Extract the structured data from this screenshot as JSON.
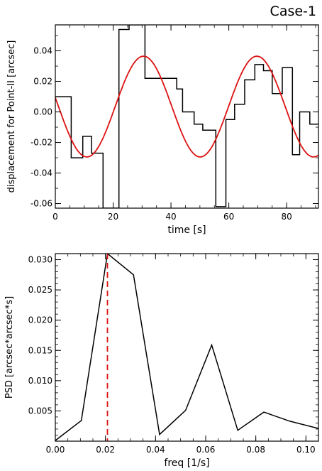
{
  "title": "Case-1",
  "colors": {
    "data": "#000000",
    "fit": "#dd1111",
    "marker": "#dd1111"
  },
  "chart_data": [
    {
      "type": "line",
      "subtype": "step-with-sine-fit",
      "xlabel": "time [s]",
      "ylabel": "displacement for Point-II [arcsec]",
      "xlim": [
        0,
        91
      ],
      "ylim": [
        -0.063,
        0.057
      ],
      "xticks": [
        0,
        20,
        40,
        60,
        80
      ],
      "yticks": [
        -0.06,
        -0.04,
        -0.02,
        0.0,
        0.02,
        0.04
      ],
      "ytick_labels": [
        "-0.06",
        "-0.04",
        "-0.02",
        "0.00",
        "0.02",
        "0.04"
      ],
      "series": [
        {
          "style": "step",
          "x": [
            0,
            2,
            5.5,
            9.5,
            12.5,
            16.5,
            20.5,
            22,
            25.5,
            30,
            31,
            37.5,
            42,
            44,
            48,
            51,
            55.5,
            59,
            62,
            65.5,
            69,
            72,
            75,
            78.5,
            82,
            84.5,
            88,
            91
          ],
          "y": [
            0.01,
            0.01,
            -0.03,
            -0.016,
            -0.027,
            -0.063,
            -0.063,
            0.054,
            0.057,
            0.063,
            0.022,
            0.022,
            0.015,
            0.0,
            -0.008,
            -0.012,
            -0.062,
            -0.005,
            0.005,
            0.021,
            0.031,
            0.027,
            0.012,
            0.029,
            -0.028,
            0.0,
            -0.008,
            -0.008
          ]
        },
        {
          "style": "sine",
          "amplitude": 0.033,
          "offset": 0.0035,
          "period": 39.2,
          "phase_peak": 30.5,
          "x_range": [
            0,
            91
          ]
        }
      ]
    },
    {
      "type": "line",
      "xlabel": "freq [1/s]",
      "ylabel": "PSD [arcsec*arcsec*s]",
      "xlim": [
        0,
        0.105
      ],
      "ylim": [
        0,
        0.031
      ],
      "xticks": [
        0.0,
        0.02,
        0.04,
        0.06,
        0.08,
        0.1
      ],
      "xtick_labels": [
        "0.00",
        "0.02",
        "0.04",
        "0.06",
        "0.08",
        "0.10"
      ],
      "yticks": [
        0.005,
        0.01,
        0.015,
        0.02,
        0.025,
        0.03
      ],
      "ytick_labels": [
        "0.005",
        "0.010",
        "0.015",
        "0.020",
        "0.025",
        "0.030"
      ],
      "series": [
        {
          "x": [
            0.0,
            0.0104,
            0.0208,
            0.0312,
            0.0416,
            0.052,
            0.0624,
            0.0728,
            0.0832,
            0.0936,
            0.105
          ],
          "y": [
            0.0001,
            0.0034,
            0.031,
            0.0275,
            0.0011,
            0.0051,
            0.0159,
            0.0018,
            0.0048,
            0.0033,
            0.0021
          ]
        }
      ],
      "marker_x": 0.0208
    }
  ]
}
